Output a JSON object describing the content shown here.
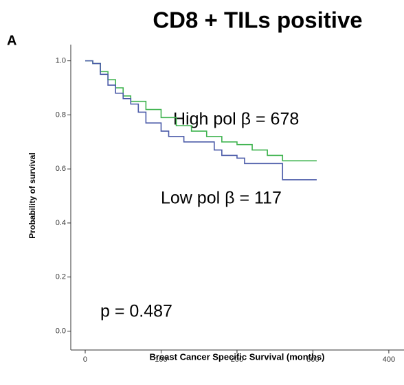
{
  "chart_data": {
    "type": "survival",
    "title": "CD8 + TILs positive",
    "panel": "A",
    "x_label": "Breast Cancer Specific Survival (months)",
    "y_label": "Probability of survival",
    "annotations": [
      "High pol β = 678",
      "Low pol β = 117",
      "p = 0.487"
    ],
    "xlim": [
      -19,
      420
    ],
    "ylim": [
      -0.07,
      1.06
    ],
    "xticks": [
      0,
      100,
      200,
      300,
      400
    ],
    "yticks": [
      {
        "value": 0,
        "label": "0.0"
      },
      0.2,
      0.4,
      0.6,
      0.8,
      {
        "value": 1,
        "label": "1.0"
      }
    ],
    "series": [
      {
        "name": "High pol β",
        "color": "#3fb34f",
        "x": [
          0,
          10,
          20,
          30,
          40,
          50,
          60,
          80,
          100,
          120,
          140,
          160,
          180,
          200,
          220,
          240,
          260,
          305
        ],
        "values": [
          1.0,
          0.99,
          0.96,
          0.93,
          0.9,
          0.87,
          0.85,
          0.82,
          0.79,
          0.76,
          0.74,
          0.72,
          0.7,
          0.69,
          0.67,
          0.65,
          0.63,
          0.63
        ]
      },
      {
        "name": "Low pol β",
        "color": "#4a5aa8",
        "x": [
          0,
          10,
          20,
          30,
          40,
          50,
          60,
          70,
          80,
          100,
          110,
          130,
          170,
          180,
          200,
          210,
          260,
          305
        ],
        "values": [
          1.0,
          0.99,
          0.95,
          0.91,
          0.88,
          0.86,
          0.84,
          0.81,
          0.77,
          0.74,
          0.72,
          0.7,
          0.67,
          0.65,
          0.64,
          0.62,
          0.56,
          0.56
        ]
      }
    ]
  }
}
